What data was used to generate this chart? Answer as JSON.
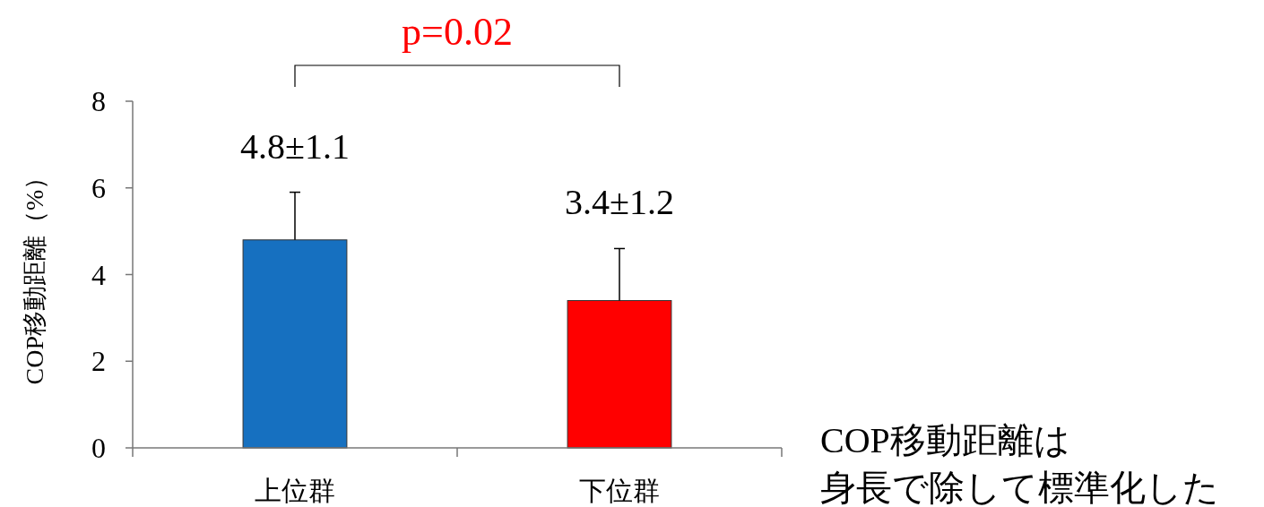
{
  "chart_data": {
    "type": "bar",
    "ylabel": "COP移動距離（%）",
    "categories": [
      "上位群",
      "下位群"
    ],
    "values": [
      4.8,
      3.4
    ],
    "colors": [
      "#1670c0",
      "#ff0000"
    ],
    "errors": [
      [
        4.8,
        5.9
      ],
      [
        3.4,
        4.6
      ]
    ],
    "value_labels": [
      "4.8±1.1",
      "3.4±1.2"
    ],
    "ylim": [
      0,
      8
    ],
    "yticks": [
      0,
      2,
      4,
      6,
      8
    ],
    "grid": false,
    "annotations": [
      "p=0.02",
      "COP移動距離は",
      "身長で除して標準化した"
    ]
  }
}
